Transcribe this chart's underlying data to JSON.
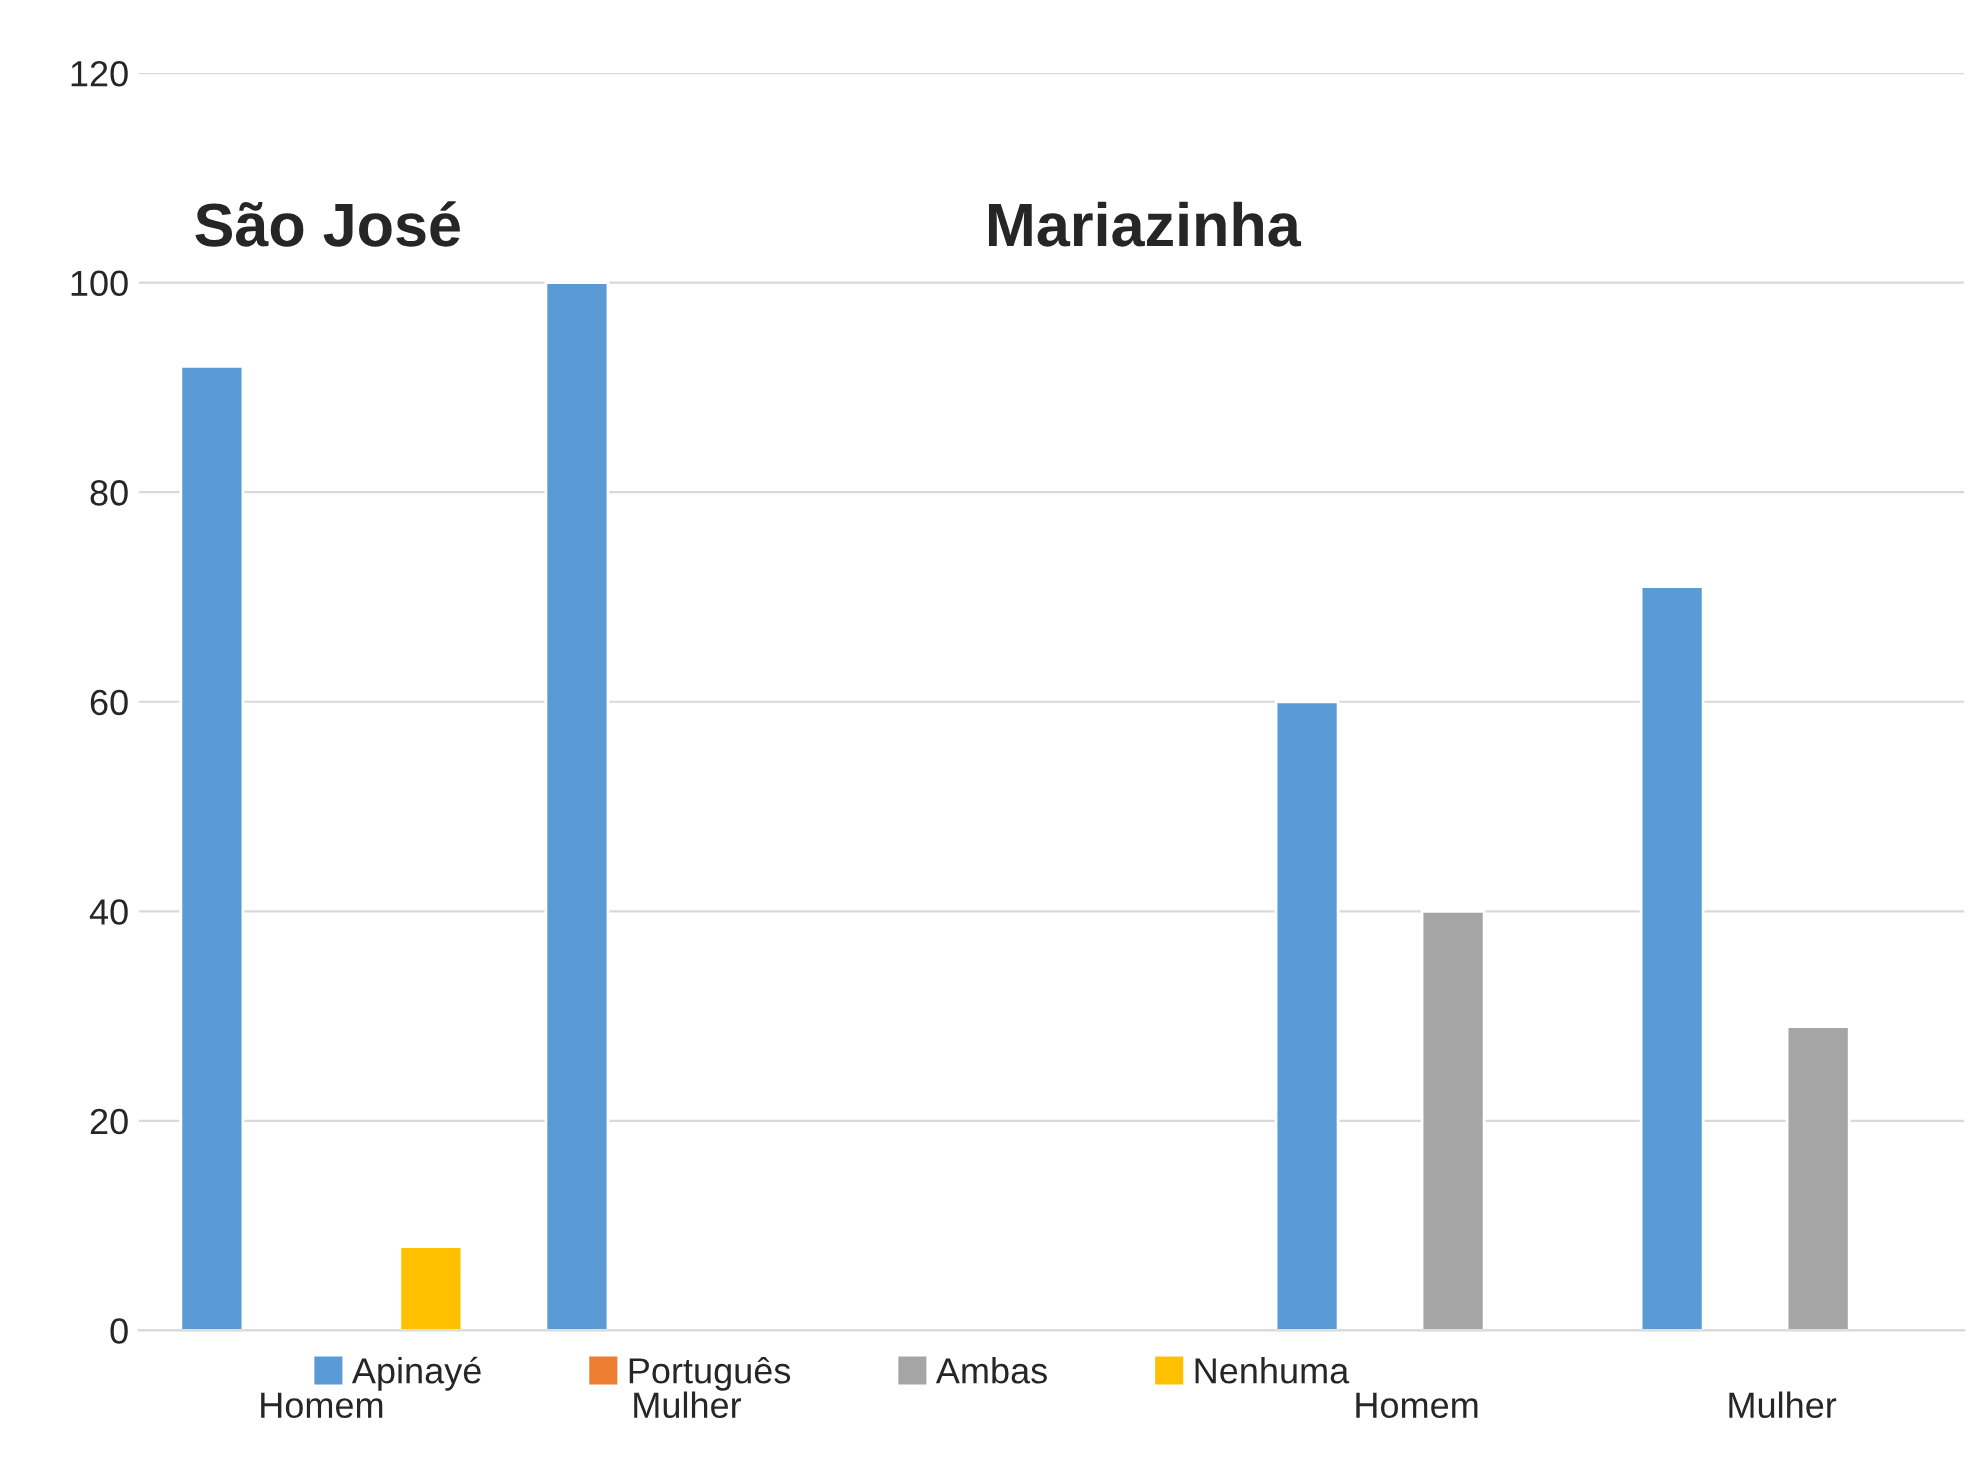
{
  "chart_data": {
    "type": "bar",
    "categories": [
      "Homem",
      "Mulher",
      null,
      "Homem",
      "Mulher"
    ],
    "series": [
      {
        "name": "Apinayé",
        "color": "#5b9bd5",
        "values": [
          92,
          100,
          null,
          60,
          71
        ]
      },
      {
        "name": "Português",
        "color": "#ed7d31",
        "values": [
          null,
          null,
          null,
          null,
          null
        ]
      },
      {
        "name": "Ambas",
        "color": "#a5a5a5",
        "values": [
          null,
          null,
          null,
          40,
          29
        ]
      },
      {
        "name": "Nenhuma",
        "color": "#ffc000",
        "values": [
          8,
          null,
          null,
          null,
          null
        ]
      }
    ],
    "annotations": [
      "São José",
      "Mariazinha"
    ],
    "ylim": [
      0,
      120
    ],
    "yticks": [
      0,
      20,
      40,
      60,
      80,
      100,
      120
    ],
    "grid": "y",
    "legend": "bottom"
  }
}
